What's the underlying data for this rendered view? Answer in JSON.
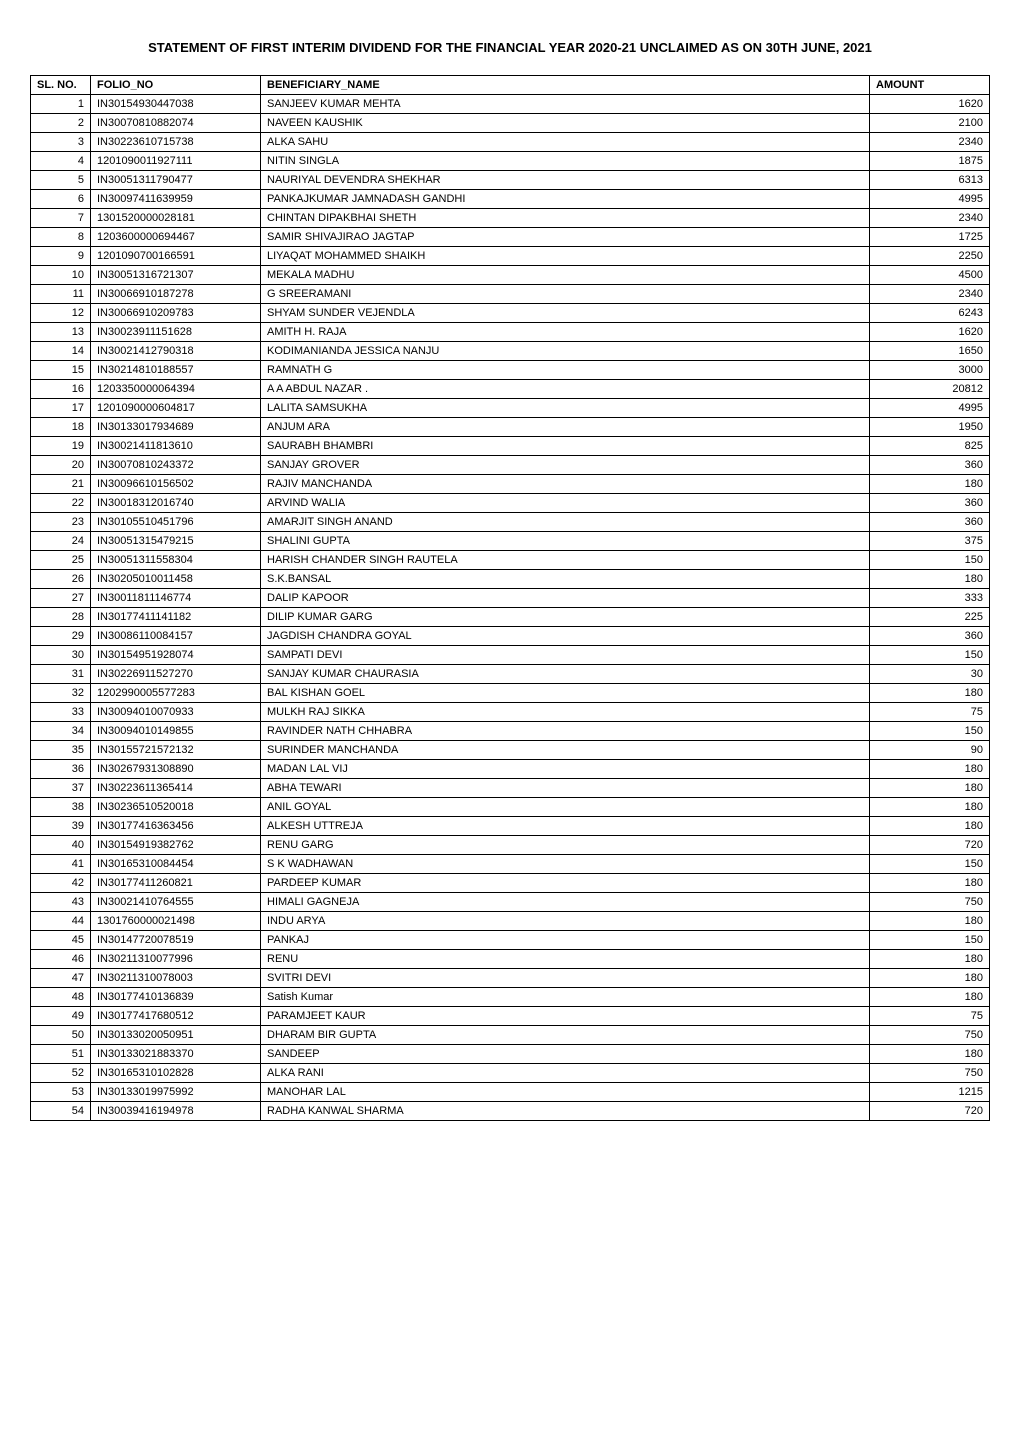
{
  "title": "STATEMENT OF  FIRST INTERIM DIVIDEND FOR THE FINANCIAL YEAR 2020-21 UNCLAIMED AS ON 30TH JUNE, 2021",
  "table": {
    "columns": [
      "SL. NO.",
      "FOLIO_NO",
      "BENEFICIARY_NAME",
      "AMOUNT"
    ],
    "rows": [
      [
        "1",
        "IN30154930447038",
        "SANJEEV KUMAR MEHTA",
        "1620"
      ],
      [
        "2",
        "IN30070810882074",
        "NAVEEN KAUSHIK",
        "2100"
      ],
      [
        "3",
        "IN30223610715738",
        "ALKA SAHU",
        "2340"
      ],
      [
        "4",
        "1201090011927111",
        "NITIN SINGLA",
        "1875"
      ],
      [
        "5",
        "IN30051311790477",
        "NAURIYAL DEVENDRA SHEKHAR",
        "6313"
      ],
      [
        "6",
        "IN30097411639959",
        "PANKAJKUMAR JAMNADASH GANDHI",
        "4995"
      ],
      [
        "7",
        "1301520000028181",
        "CHINTAN DIPAKBHAI SHETH",
        "2340"
      ],
      [
        "8",
        "1203600000694467",
        "SAMIR SHIVAJIRAO JAGTAP",
        "1725"
      ],
      [
        "9",
        "1201090700166591",
        "LIYAQAT MOHAMMED SHAIKH",
        "2250"
      ],
      [
        "10",
        "IN30051316721307",
        "MEKALA MADHU",
        "4500"
      ],
      [
        "11",
        "IN30066910187278",
        "G SREERAMANI",
        "2340"
      ],
      [
        "12",
        "IN30066910209783",
        "SHYAM SUNDER VEJENDLA",
        "6243"
      ],
      [
        "13",
        "IN30023911151628",
        "AMITH   H. RAJA",
        "1620"
      ],
      [
        "14",
        "IN30021412790318",
        "KODIMANIANDA JESSICA NANJU",
        "1650"
      ],
      [
        "15",
        "IN30214810188557",
        "RAMNATH G",
        "3000"
      ],
      [
        "16",
        "1203350000064394",
        "A A ABDUL NAZAR .",
        "20812"
      ],
      [
        "17",
        "1201090000604817",
        "LALITA SAMSUKHA",
        "4995"
      ],
      [
        "18",
        "IN30133017934689",
        "ANJUM ARA",
        "1950"
      ],
      [
        "19",
        "IN30021411813610",
        "SAURABH BHAMBRI",
        "825"
      ],
      [
        "20",
        "IN30070810243372",
        "SANJAY GROVER",
        "360"
      ],
      [
        "21",
        "IN30096610156502",
        "RAJIV MANCHANDA",
        "180"
      ],
      [
        "22",
        "IN30018312016740",
        "ARVIND WALIA",
        "360"
      ],
      [
        "23",
        "IN30105510451796",
        "AMARJIT SINGH ANAND",
        "360"
      ],
      [
        "24",
        "IN30051315479215",
        "SHALINI  GUPTA",
        "375"
      ],
      [
        "25",
        "IN30051311558304",
        "HARISH CHANDER SINGH RAUTELA",
        "150"
      ],
      [
        "26",
        "IN30205010011458",
        "S.K.BANSAL",
        "180"
      ],
      [
        "27",
        "IN30011811146774",
        "DALIP KAPOOR",
        "333"
      ],
      [
        "28",
        "IN30177411141182",
        "DILIP KUMAR GARG",
        "225"
      ],
      [
        "29",
        "IN30086110084157",
        "JAGDISH CHANDRA GOYAL",
        "360"
      ],
      [
        "30",
        "IN30154951928074",
        "SAMPATI DEVI",
        "150"
      ],
      [
        "31",
        "IN30226911527270",
        "SANJAY KUMAR CHAURASIA",
        "30"
      ],
      [
        "32",
        "1202990005577283",
        "BAL KISHAN GOEL",
        "180"
      ],
      [
        "33",
        "IN30094010070933",
        "MULKH RAJ SIKKA",
        "75"
      ],
      [
        "34",
        "IN30094010149855",
        "RAVINDER NATH CHHABRA",
        "150"
      ],
      [
        "35",
        "IN30155721572132",
        "SURINDER MANCHANDA",
        "90"
      ],
      [
        "36",
        "IN30267931308890",
        "MADAN LAL VIJ",
        "180"
      ],
      [
        "37",
        "IN30223611365414",
        "ABHA TEWARI",
        "180"
      ],
      [
        "38",
        "IN30236510520018",
        "ANIL GOYAL",
        "180"
      ],
      [
        "39",
        "IN30177416363456",
        "ALKESH UTTREJA",
        "180"
      ],
      [
        "40",
        "IN30154919382762",
        "RENU GARG",
        "720"
      ],
      [
        "41",
        "IN30165310084454",
        "S K WADHAWAN",
        "150"
      ],
      [
        "42",
        "IN30177411260821",
        "PARDEEP KUMAR",
        "180"
      ],
      [
        "43",
        "IN30021410764555",
        "HIMALI GAGNEJA",
        "750"
      ],
      [
        "44",
        "1301760000021498",
        "INDU ARYA",
        "180"
      ],
      [
        "45",
        "IN30147720078519",
        "PANKAJ",
        "150"
      ],
      [
        "46",
        "IN30211310077996",
        "RENU",
        "180"
      ],
      [
        "47",
        "IN30211310078003",
        "SVITRI DEVI",
        "180"
      ],
      [
        "48",
        "IN30177410136839",
        "Satish Kumar",
        "180"
      ],
      [
        "49",
        "IN30177417680512",
        "PARAMJEET KAUR",
        "75"
      ],
      [
        "50",
        "IN30133020050951",
        "DHARAM BIR GUPTA",
        "750"
      ],
      [
        "51",
        "IN30133021883370",
        "SANDEEP",
        "180"
      ],
      [
        "52",
        "IN30165310102828",
        "ALKA RANI",
        "750"
      ],
      [
        "53",
        "IN30133019975992",
        "MANOHAR LAL",
        "1215"
      ],
      [
        "54",
        "IN30039416194978",
        "RADHA KANWAL SHARMA",
        "720"
      ]
    ]
  },
  "styling": {
    "font_family": "Arial, sans-serif",
    "title_fontsize": 13,
    "title_fontweight": "bold",
    "table_fontsize": 11,
    "border_color": "#000000",
    "background_color": "#ffffff",
    "text_color": "#000000",
    "col_widths": {
      "slno": 60,
      "folio": 170,
      "amount": 120
    },
    "slno_align": "right",
    "amount_align": "right"
  }
}
